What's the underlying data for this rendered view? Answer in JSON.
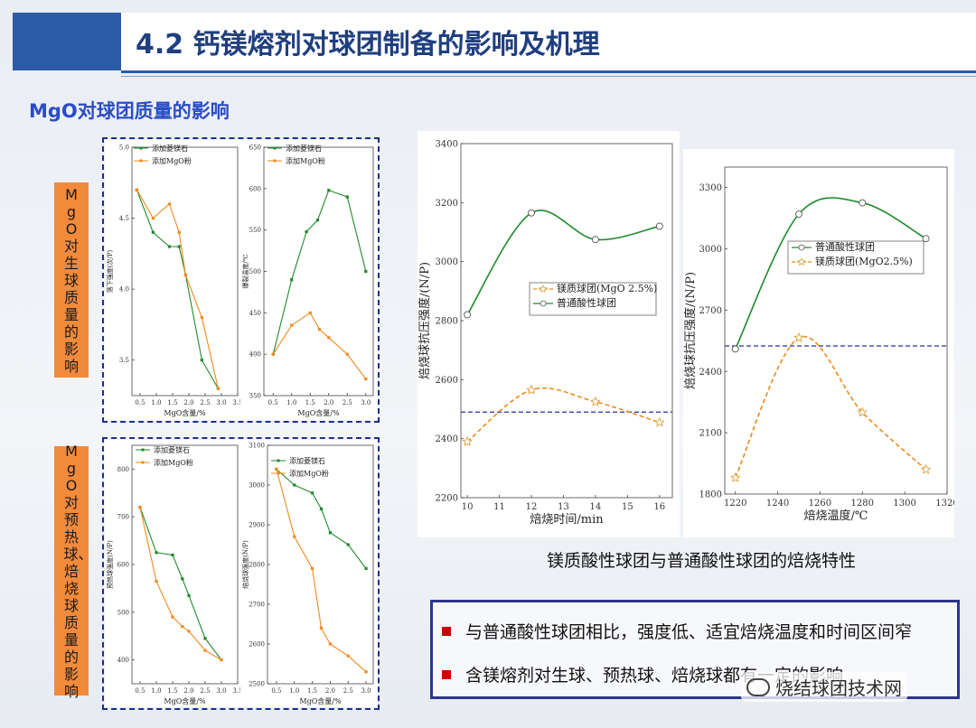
{
  "header": {
    "title": "4.2 钙镁熔剂对球团制备的影响及机理"
  },
  "section": {
    "subtitle": "MgO对球团质量的影响"
  },
  "side_labels": {
    "top": "MgO对生球质量的影响",
    "bottom": "MgO对预热球、焙烧球质量的影响"
  },
  "caption": "镁质酸性球团与普通酸性球团的焙烧特性",
  "bullets": [
    "与普通酸性球团相比，强度低、适宜焙烧温度和时间区间窄",
    "含镁熔剂对生球、预热球、焙烧球都有一定的影响"
  ],
  "watermark": "烧结球团技术网",
  "colors": {
    "green": "#1e8a2a",
    "orange": "#f08a1e",
    "navy": "#1d2f8c",
    "accent": "#2d5aa6"
  },
  "chart_data": [
    {
      "type": "line",
      "xlabel": "MgO含量/%",
      "ylabel": "落下强度(次/P)",
      "ylim": [
        3.25,
        5.0
      ],
      "xlim": [
        0.25,
        3.5
      ],
      "xticks": [
        "0.5",
        "1.0",
        "1.5",
        "2.0",
        "2.5",
        "3.0",
        "3.5"
      ],
      "yticks": [
        "3.5",
        "4.0",
        "4.5",
        "5.0"
      ],
      "legend": "top-right",
      "series": [
        {
          "name": "添加菱镁石",
          "color": "green",
          "x": [
            0.4,
            0.9,
            1.4,
            1.7,
            1.9,
            2.4,
            2.9
          ],
          "y": [
            4.7,
            4.4,
            4.3,
            4.3,
            4.1,
            3.5,
            3.3
          ]
        },
        {
          "name": "添加MgO粉",
          "color": "orange",
          "x": [
            0.4,
            0.9,
            1.4,
            1.7,
            1.9,
            2.4,
            2.9
          ],
          "y": [
            4.7,
            4.5,
            4.6,
            4.4,
            4.1,
            3.8,
            3.3
          ]
        }
      ]
    },
    {
      "type": "line",
      "xlabel": "MgO含量/%",
      "ylabel": "爆裂温度/℃",
      "ylim": [
        350,
        650
      ],
      "xlim": [
        0.25,
        3.2
      ],
      "xticks": [
        "0.5",
        "1.0",
        "1.5",
        "2.0",
        "2.5",
        "3.0"
      ],
      "yticks": [
        "350",
        "400",
        "450",
        "500",
        "550",
        "600",
        "650"
      ],
      "legend": "top-right",
      "series": [
        {
          "name": "添加菱镁石",
          "color": "green",
          "x": [
            0.5,
            1.0,
            1.4,
            1.7,
            2.0,
            2.5,
            3.0
          ],
          "y": [
            400,
            490,
            548,
            562,
            598,
            590,
            500
          ]
        },
        {
          "name": "添加MgO粉",
          "color": "orange",
          "x": [
            0.5,
            1.0,
            1.5,
            1.75,
            2.0,
            2.5,
            3.0
          ],
          "y": [
            400,
            435,
            450,
            430,
            420,
            400,
            370
          ]
        }
      ]
    },
    {
      "type": "line",
      "xlabel": "MgO含量/%",
      "ylabel": "预热球强度(N/P)",
      "ylim": [
        350,
        850
      ],
      "xlim": [
        0.25,
        3.5
      ],
      "xticks": [
        "0.5",
        "1.0",
        "1.5",
        "2.0",
        "2.5",
        "3.0",
        "3.5"
      ],
      "yticks": [
        "400",
        "500",
        "600",
        "700",
        "800"
      ],
      "legend": "top-right",
      "series": [
        {
          "name": "添加菱镁石",
          "color": "green",
          "x": [
            0.5,
            1.0,
            1.5,
            1.8,
            2.0,
            2.5,
            3.0
          ],
          "y": [
            720,
            625,
            620,
            570,
            535,
            445,
            400
          ]
        },
        {
          "name": "添加MgO粉",
          "color": "orange",
          "x": [
            0.5,
            1.0,
            1.5,
            1.8,
            2.0,
            2.5,
            3.0
          ],
          "y": [
            720,
            565,
            490,
            470,
            460,
            420,
            400
          ]
        }
      ]
    },
    {
      "type": "line",
      "xlabel": "MgO含量/%",
      "ylabel": "焙烧球强度(N/P)",
      "ylim": [
        2500,
        3100
      ],
      "xlim": [
        0.25,
        3.2
      ],
      "xticks": [
        "0.5",
        "1.0",
        "1.5",
        "2.0",
        "2.5",
        "3.0"
      ],
      "yticks": [
        "2500",
        "2600",
        "2700",
        "2800",
        "2900",
        "3000",
        "3100"
      ],
      "legend": "top-right",
      "series": [
        {
          "name": "添加菱镁石",
          "color": "green",
          "x": [
            0.5,
            1.0,
            1.5,
            1.75,
            2.0,
            2.5,
            3.0
          ],
          "y": [
            3040,
            3000,
            2980,
            2940,
            2880,
            2850,
            2790
          ]
        },
        {
          "name": "添加MgO粉",
          "color": "orange",
          "x": [
            0.5,
            1.0,
            1.5,
            1.75,
            2.0,
            2.5,
            3.0
          ],
          "y": [
            3040,
            2870,
            2790,
            2640,
            2600,
            2570,
            2530
          ]
        }
      ]
    },
    {
      "type": "line",
      "xlabel": "焙烧时间/min",
      "ylabel": "焙烧球抗压强度/(N/P)",
      "ylim": [
        2200,
        3400
      ],
      "xlim": [
        9.8,
        16.4
      ],
      "xticks": [
        "10",
        "11",
        "12",
        "13",
        "14",
        "15",
        "16"
      ],
      "yticks": [
        "2200",
        "2400",
        "2600",
        "2800",
        "3000",
        "3200",
        "3400"
      ],
      "legend": "center",
      "reference_line": 2490,
      "series": [
        {
          "name": "镁质球团(MgO 2.5%)",
          "color": "orange",
          "x": [
            10,
            12,
            14,
            16
          ],
          "y": [
            2390,
            2565,
            2525,
            2455
          ]
        },
        {
          "name": "普通酸性球团",
          "color": "green",
          "x": [
            10,
            12,
            14,
            16
          ],
          "y": [
            2820,
            3165,
            3075,
            3120
          ]
        }
      ]
    },
    {
      "type": "line",
      "xlabel": "焙烧温度/℃",
      "ylabel": "焙烧球抗压强度/(N/P)",
      "ylim": [
        1800,
        3400
      ],
      "xlim": [
        1215,
        1320
      ],
      "xticks": [
        "1220",
        "1240",
        "1260",
        "1280",
        "1300",
        "1320"
      ],
      "yticks": [
        "1800",
        "2100",
        "2400",
        "2700",
        "3000",
        "3300"
      ],
      "legend": "center-right",
      "reference_line": 2525,
      "series": [
        {
          "name": "普通酸性球团",
          "color": "green",
          "x": [
            1220,
            1250,
            1280,
            1310
          ],
          "y": [
            2510,
            3170,
            3225,
            3050
          ]
        },
        {
          "name": "镁质球团(MgO2.5%)",
          "color": "orange",
          "x": [
            1220,
            1250,
            1280,
            1310
          ],
          "y": [
            1880,
            2565,
            2200,
            1920
          ]
        }
      ]
    }
  ]
}
